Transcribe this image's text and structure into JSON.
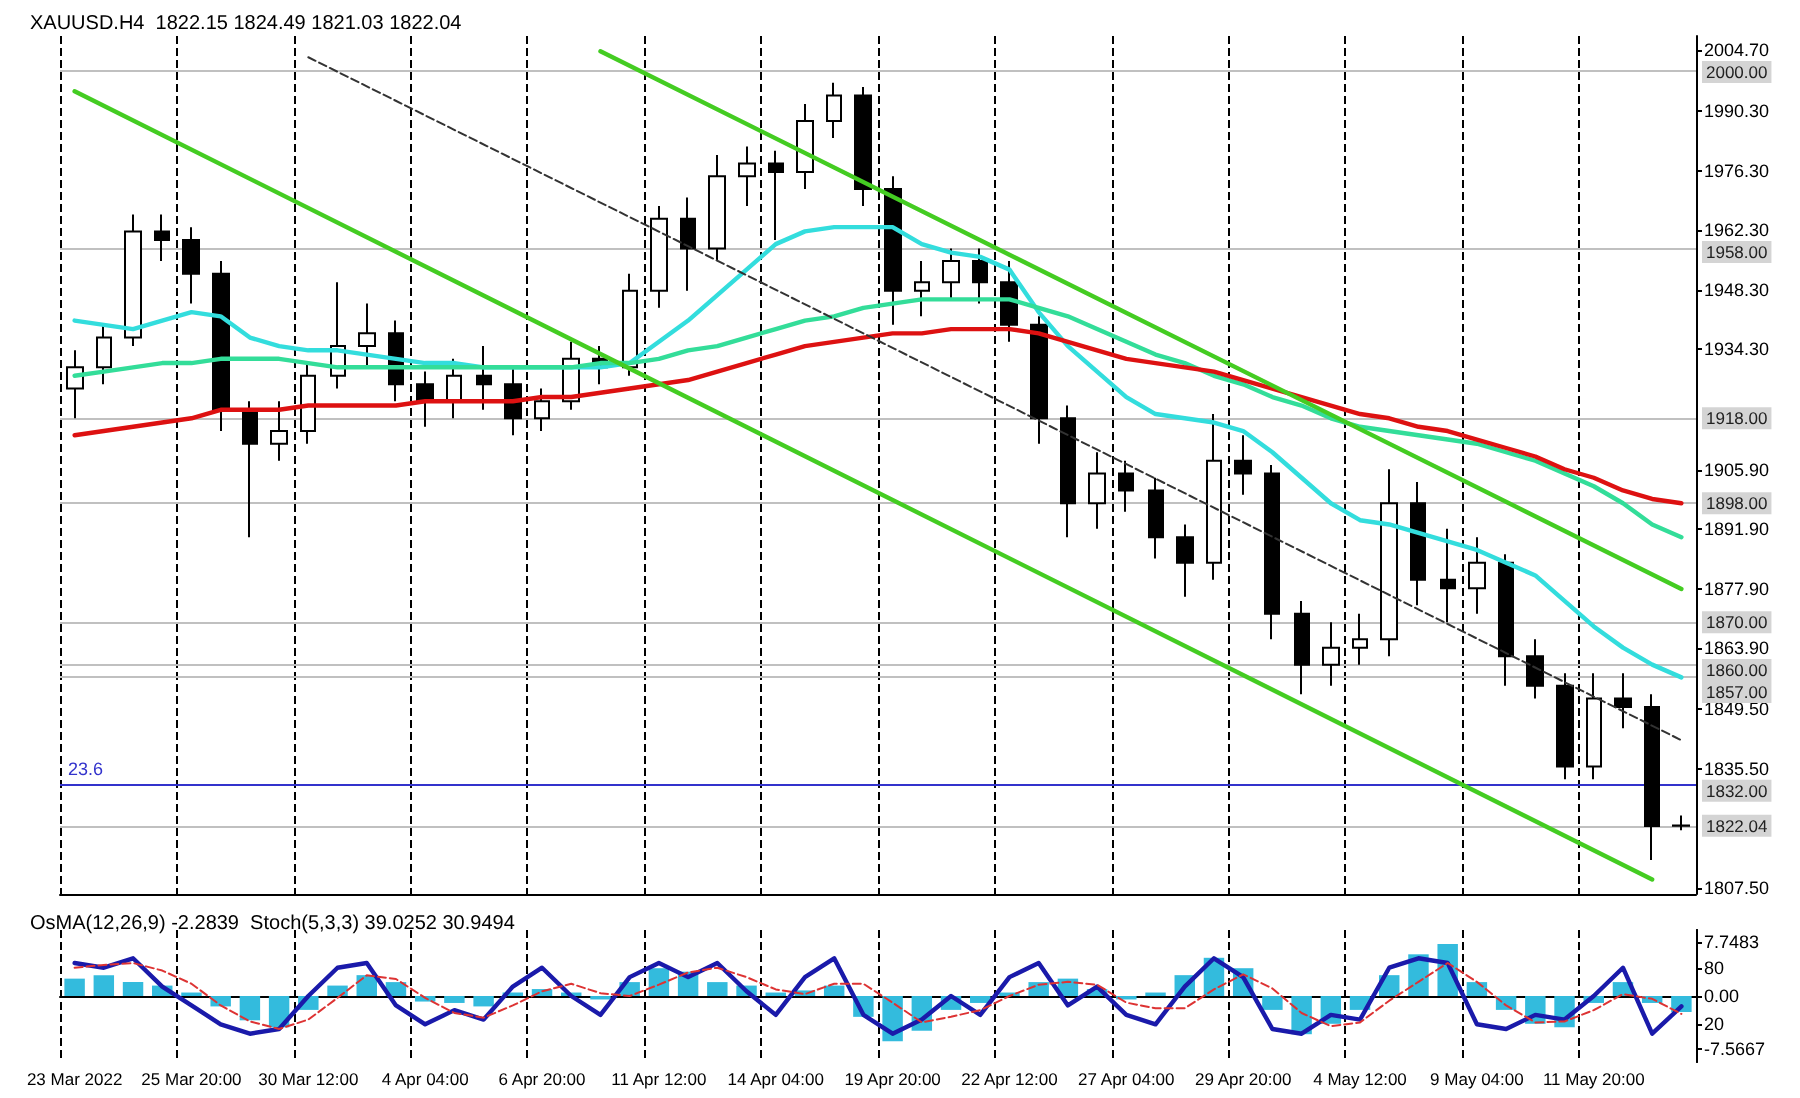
{
  "chart_data": [
    {
      "type": "candlestick",
      "title": "XAUUSD.H4  1822.15 1824.49 1821.03 1822.04",
      "categories": [
        null,
        null,
        null,
        null,
        null,
        null,
        null,
        null,
        null,
        null,
        null,
        null,
        null,
        null,
        null,
        null,
        null,
        null,
        null,
        null,
        null,
        null,
        null,
        null,
        null,
        null,
        null,
        null,
        null,
        null,
        null,
        null,
        null,
        null,
        null,
        null,
        null,
        null,
        null,
        null,
        null,
        null,
        null,
        null,
        null,
        null,
        null,
        null,
        null,
        null,
        null,
        null,
        null,
        null,
        null,
        null
      ],
      "ohlc": [
        [
          1925,
          1934,
          1918,
          1930
        ],
        [
          1930,
          1940,
          1926,
          1937
        ],
        [
          1937,
          1966,
          1935,
          1962
        ],
        [
          1962,
          1966,
          1955,
          1960
        ],
        [
          1960,
          1963,
          1945,
          1952
        ],
        [
          1952,
          1955,
          1915,
          1920
        ],
        [
          1920,
          1922,
          1890,
          1912
        ],
        [
          1912,
          1922,
          1908,
          1915
        ],
        [
          1915,
          1931,
          1912,
          1928
        ],
        [
          1928,
          1950,
          1925,
          1935
        ],
        [
          1935,
          1945,
          1930,
          1938
        ],
        [
          1938,
          1941,
          1922,
          1926
        ],
        [
          1926,
          1929,
          1916,
          1922
        ],
        [
          1922,
          1932,
          1918,
          1928
        ],
        [
          1928,
          1935,
          1920,
          1926
        ],
        [
          1926,
          1930,
          1914,
          1918
        ],
        [
          1918,
          1925,
          1915,
          1922
        ],
        [
          1922,
          1936,
          1920,
          1932
        ],
        [
          1932,
          1935,
          1926,
          1930
        ],
        [
          1930,
          1952,
          1928,
          1948
        ],
        [
          1948,
          1968,
          1944,
          1965
        ],
        [
          1965,
          1970,
          1948,
          1958
        ],
        [
          1958,
          1980,
          1955,
          1975
        ],
        [
          1975,
          1982,
          1968,
          1978
        ],
        [
          1978,
          1981,
          1960,
          1976
        ],
        [
          1976,
          1992,
          1972,
          1988
        ],
        [
          1988,
          1997,
          1984,
          1994
        ],
        [
          1994,
          1996,
          1968,
          1972
        ],
        [
          1972,
          1975,
          1940,
          1948
        ],
        [
          1948,
          1955,
          1942,
          1950
        ],
        [
          1950,
          1958,
          1946,
          1955
        ],
        [
          1955,
          1958,
          1945,
          1950
        ],
        [
          1950,
          1955,
          1936,
          1940
        ],
        [
          1940,
          1942,
          1912,
          1918
        ],
        [
          1918,
          1921,
          1890,
          1898
        ],
        [
          1898,
          1910,
          1892,
          1905
        ],
        [
          1905,
          1908,
          1896,
          1901
        ],
        [
          1901,
          1904,
          1885,
          1890
        ],
        [
          1890,
          1893,
          1876,
          1884
        ],
        [
          1884,
          1919,
          1880,
          1908
        ],
        [
          1908,
          1914,
          1900,
          1905
        ],
        [
          1905,
          1907,
          1866,
          1872
        ],
        [
          1872,
          1875,
          1853,
          1860
        ],
        [
          1860,
          1870,
          1855,
          1864
        ],
        [
          1864,
          1872,
          1860,
          1866
        ],
        [
          1866,
          1906,
          1862,
          1898
        ],
        [
          1898,
          1903,
          1874,
          1880
        ],
        [
          1880,
          1892,
          1870,
          1878
        ],
        [
          1878,
          1890,
          1872,
          1884
        ],
        [
          1884,
          1886,
          1855,
          1862
        ],
        [
          1862,
          1866,
          1852,
          1855
        ],
        [
          1855,
          1858,
          1833,
          1836
        ],
        [
          1836,
          1858,
          1833,
          1852
        ],
        [
          1852,
          1858,
          1845,
          1850
        ],
        [
          1850,
          1853,
          1814,
          1822
        ],
        [
          1822.15,
          1824.49,
          1821.03,
          1822.04
        ]
      ],
      "series": [
        {
          "type": "line",
          "color": "#33dddd",
          "values": [
            1941,
            1940,
            1939,
            1941,
            1943,
            1942,
            1937,
            1935,
            1934,
            1934,
            1933,
            1932,
            1931,
            1931,
            1930,
            1930,
            1930,
            1930,
            1930,
            1931,
            1936,
            1941,
            1947,
            1953,
            1959,
            1962,
            1963,
            1963,
            1963,
            1959,
            1957,
            1956,
            1953,
            1943,
            1935,
            1929,
            1923,
            1919,
            1918,
            1917,
            1915,
            1910,
            1904,
            1898,
            1894,
            1893,
            1891,
            1889,
            1887,
            1884,
            1881,
            1875,
            1869,
            1864,
            1860,
            1857
          ]
        },
        {
          "type": "line",
          "color": "#33dd99",
          "values": [
            1928,
            1929,
            1930,
            1931,
            1931,
            1932,
            1932,
            1932,
            1931,
            1930,
            1930,
            1930,
            1930,
            1930,
            1930,
            1930,
            1930,
            1930,
            1931,
            1931,
            1932,
            1934,
            1935,
            1937,
            1939,
            1941,
            1942,
            1944,
            1945,
            1946,
            1946,
            1946,
            1946,
            1944,
            1942,
            1939,
            1936,
            1933,
            1931,
            1928,
            1926,
            1923,
            1921,
            1918,
            1916,
            1915,
            1914,
            1913,
            1912,
            1910,
            1908,
            1905,
            1902,
            1898,
            1893,
            1890
          ]
        },
        {
          "type": "line",
          "color": "#dd1111",
          "values": [
            1914,
            1915,
            1916,
            1917,
            1918,
            1920,
            1920,
            1920,
            1921,
            1921,
            1921,
            1921,
            1922,
            1922,
            1922,
            1922,
            1923,
            1923,
            1924,
            1925,
            1926,
            1927,
            1929,
            1931,
            1933,
            1935,
            1936,
            1937,
            1938,
            1938,
            1939,
            1939,
            1939,
            1938,
            1936,
            1934,
            1932,
            1931,
            1930,
            1929,
            1927,
            1925,
            1923,
            1921,
            1919,
            1918,
            1916,
            1915,
            1913,
            1911,
            1909,
            1906,
            1904,
            1901,
            1899,
            1898
          ]
        },
        {
          "type": "line",
          "color": "#44cc22",
          "values": [
            null,
            null,
            null,
            null,
            null,
            null,
            null,
            null,
            null,
            null,
            null,
            null,
            null,
            null,
            null,
            null,
            null,
            null,
            2004.4,
            null,
            null,
            null,
            null,
            null,
            null,
            null,
            null,
            null,
            null,
            null,
            null,
            null,
            null,
            null,
            null,
            null,
            null,
            null,
            null,
            null,
            null,
            null,
            null,
            null,
            null,
            null,
            null,
            null,
            null,
            null,
            null,
            null,
            null,
            null,
            null,
            1877.8
          ]
        },
        {
          "type": "line",
          "color": "#44cc22",
          "values": [
            1995,
            null,
            null,
            null,
            null,
            null,
            null,
            null,
            null,
            null,
            null,
            null,
            null,
            null,
            null,
            null,
            null,
            null,
            null,
            null,
            null,
            null,
            null,
            null,
            null,
            null,
            null,
            null,
            null,
            null,
            null,
            null,
            null,
            null,
            null,
            null,
            null,
            null,
            null,
            null,
            null,
            null,
            null,
            null,
            null,
            null,
            null,
            null,
            null,
            null,
            null,
            null,
            null,
            null,
            1809.4,
            null
          ]
        },
        {
          "type": "line",
          "color": "#333333",
          "line_style": "dashed",
          "values": [
            null,
            null,
            null,
            null,
            null,
            null,
            null,
            null,
            2003,
            null,
            null,
            null,
            null,
            null,
            null,
            null,
            null,
            null,
            null,
            null,
            null,
            null,
            null,
            null,
            null,
            null,
            null,
            null,
            null,
            null,
            null,
            null,
            null,
            null,
            null,
            null,
            null,
            null,
            null,
            null,
            null,
            null,
            null,
            null,
            null,
            null,
            null,
            null,
            null,
            null,
            null,
            null,
            null,
            null,
            null,
            1842.2
          ]
        }
      ],
      "ylim": [
        1806,
        2008
      ],
      "yticks": [
        {
          "value": 2004.7,
          "label": "2004.70"
        },
        {
          "value": 1990.3,
          "label": "1990.30"
        },
        {
          "value": 1976.3,
          "label": "1976.30"
        },
        {
          "value": 1962.3,
          "label": "1962.30"
        },
        {
          "value": 1948.3,
          "label": "1948.30"
        },
        {
          "value": 1934.3,
          "label": "1934.30"
        },
        {
          "value": 1905.9,
          "label": "1905.90"
        },
        {
          "value": 1891.9,
          "label": "1891.90"
        },
        {
          "value": 1877.9,
          "label": "1877.90"
        },
        {
          "value": 1863.9,
          "label": "1863.90"
        },
        {
          "value": 1849.5,
          "label": "1849.50"
        },
        {
          "value": 1835.5,
          "label": "1835.50"
        },
        {
          "value": 1807.5,
          "label": "1807.50"
        }
      ],
      "ref_lines": [
        {
          "axis": "y",
          "value": 2000,
          "label": "2000.00",
          "color": "#c0c0c0"
        },
        {
          "axis": "y",
          "value": 1958,
          "label": "1958.00",
          "color": "#c0c0c0"
        },
        {
          "axis": "y",
          "value": 1918,
          "label": "1918.00",
          "color": "#c0c0c0"
        },
        {
          "axis": "y",
          "value": 1898,
          "label": "1898.00",
          "color": "#c0c0c0"
        },
        {
          "axis": "y",
          "value": 1870,
          "label": "1870.00",
          "color": "#c0c0c0"
        },
        {
          "axis": "y",
          "value": 1860,
          "label": "1860.00",
          "color": "#c0c0c0"
        },
        {
          "axis": "y",
          "value": 1857,
          "label": "1857.00",
          "color": "#c0c0c0"
        },
        {
          "axis": "y",
          "value": 1832,
          "label": "1832.00",
          "color": "#3333cc"
        },
        {
          "axis": "y",
          "value": 1822.04,
          "label": "1822.04",
          "color": "#c0c0c0"
        }
      ],
      "annotations": [
        {
          "text": "23.6",
          "y": 1832
        }
      ],
      "grid": "x",
      "marker": "none",
      "tick_labels": "y"
    },
    {
      "type": "bar",
      "title": "OsMA(12,26,9) -2.2839  Stoch(5,3,3) 39.0252 30.9494",
      "categories": [
        "23 Mar 2022",
        null,
        null,
        null,
        "25 Mar 20:00",
        null,
        null,
        null,
        "30 Mar 12:00",
        null,
        null,
        null,
        "4 Apr 04:00",
        null,
        null,
        null,
        "6 Apr 20:00",
        null,
        null,
        null,
        "11 Apr 12:00",
        null,
        null,
        null,
        "14 Apr 04:00",
        null,
        null,
        null,
        "19 Apr 20:00",
        null,
        null,
        null,
        "22 Apr 12:00",
        null,
        null,
        null,
        "27 Apr 04:00",
        null,
        null,
        null,
        "29 Apr 20:00",
        null,
        null,
        null,
        "4 May 12:00",
        null,
        null,
        null,
        "9 May 04:00",
        null,
        null,
        null,
        "11 May 20:00",
        null,
        null,
        null
      ],
      "series": [
        {
          "type": "bar",
          "color": "#33bbdd",
          "values": [
            2.5,
            3,
            2,
            1.5,
            0.5,
            -1.5,
            -3.5,
            -4.5,
            -2,
            1.5,
            3,
            2,
            -0.8,
            -1,
            -1.5,
            0.5,
            1,
            0.5,
            -0.5,
            2,
            4,
            3.5,
            2,
            1.5,
            0.5,
            0.8,
            1.5,
            -3,
            -6.5,
            -5,
            -2,
            -1,
            0.5,
            2,
            2.5,
            1,
            -0.5,
            0.5,
            3,
            5.5,
            4,
            -2,
            -5.5,
            -4,
            -2,
            3,
            6,
            7.5,
            2,
            -2,
            -4,
            -4.5,
            -1,
            2,
            -1,
            -2.3
          ]
        },
        {
          "type": "line",
          "axis": "y2",
          "color": "#1a1aaa",
          "values": [
            85,
            80,
            90,
            60,
            40,
            20,
            10,
            15,
            50,
            80,
            85,
            40,
            20,
            35,
            25,
            60,
            80,
            50,
            30,
            70,
            85,
            70,
            85,
            55,
            30,
            70,
            90,
            30,
            10,
            25,
            50,
            30,
            70,
            85,
            40,
            60,
            30,
            20,
            60,
            90,
            70,
            15,
            10,
            30,
            25,
            80,
            90,
            85,
            20,
            15,
            30,
            25,
            50,
            80,
            10,
            39
          ]
        },
        {
          "type": "line",
          "axis": "y2",
          "color": "#dd3333",
          "line_style": "dashed",
          "values": [
            80,
            83,
            85,
            77,
            63,
            40,
            23,
            15,
            25,
            48,
            72,
            68,
            48,
            32,
            27,
            40,
            55,
            63,
            53,
            50,
            62,
            75,
            80,
            70,
            57,
            52,
            63,
            63,
            43,
            22,
            28,
            35,
            50,
            62,
            65,
            62,
            43,
            37,
            37,
            57,
            73,
            58,
            32,
            18,
            22,
            45,
            65,
            85,
            65,
            40,
            22,
            23,
            35,
            52,
            47,
            31
          ]
        }
      ],
      "ylim": [
        -9.5,
        9.5
      ],
      "yticks": [
        {
          "value": 7.7483,
          "label": "7.7483"
        },
        {
          "value": 0,
          "label": "0.00"
        },
        {
          "value": -7.5667,
          "label": "-7.5667"
        }
      ],
      "y2lim": [
        -20,
        120
      ],
      "y2ticks": [
        80,
        20
      ],
      "grid": "x",
      "marker": "none"
    }
  ]
}
